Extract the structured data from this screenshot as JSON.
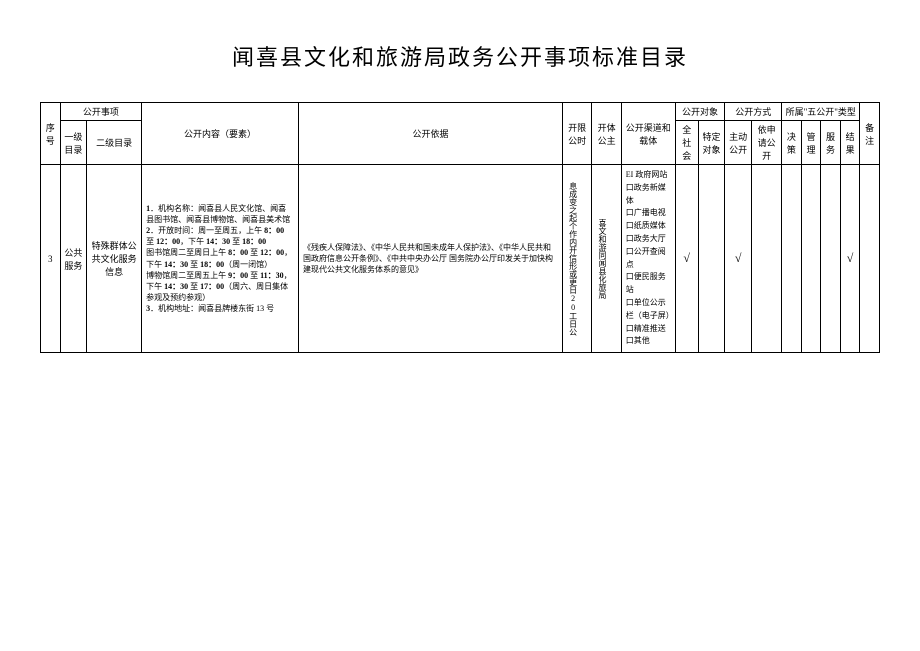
{
  "title": "闻喜县文化和旅游局政务公开事项标准目录",
  "headers": {
    "seq": "序号",
    "open_items": "公开事项",
    "level1": "一级目录",
    "level2": "二级目录",
    "content": "公开内容（要素）",
    "basis": "公开依据",
    "time_limit": "开限公时",
    "subject": "开体公主",
    "channel": "公开渠道和载体",
    "target": "公开对象",
    "all_society": "全社会",
    "specific": "特定对象",
    "method": "公开方式",
    "active": "主动公开",
    "on_request": "依申请公开",
    "five_open": "所属\"五公开\"类型",
    "decision": "决策",
    "manage": "管理",
    "service": "服务",
    "result": "结果",
    "remark": "备注"
  },
  "row": {
    "seq": "3",
    "level1": "公共服务",
    "level2": "特殊群体公共文化服务信息",
    "content_1_label": "1",
    "content_1_title": "．机构名称：",
    "content_1_text": "闻喜县人民文化馆、闻喜县图书馆、闻喜县博物馆、闻喜县美术馆",
    "content_2_label": "2",
    "content_2_title": "．开放时间：",
    "content_2_text_a": "周一至周五，上午 ",
    "content_2_time_a": "8：00",
    "content_2_text_b": " 至 ",
    "content_2_time_b": "12：00",
    "content_2_text_c": "，下午 ",
    "content_2_time_c": "14：30",
    "content_2_text_d": " 至 ",
    "content_2_time_d": "18：00",
    "content_lib_a": "图书馆周二至周日上午 ",
    "content_lib_time_a": "8：00",
    "content_lib_b": " 至 ",
    "content_lib_time_b": "12：00",
    "content_lib_c": "，下午 ",
    "content_lib_time_c": "14：30",
    "content_lib_d": " 至 ",
    "content_lib_time_d": "18：00",
    "content_lib_e": "（周一闭馆）",
    "content_mus_a": "博物馆周二至周五上午 ",
    "content_mus_time_a": "9：00",
    "content_mus_b": " 至 ",
    "content_mus_time_b": "11：30",
    "content_mus_c": "，下午 ",
    "content_mus_time_c": "14：30",
    "content_mus_d": " 至 ",
    "content_mus_time_d": "17：00",
    "content_mus_e": "（周六、周日集体参观及预约参观）",
    "content_3_label": "3",
    "content_3_title": "．机构地址：",
    "content_3_text": "闻喜县牌楼东街 13 号",
    "basis": "《残疾人保障法》、《中华人民共和国未成年人保护法》、《中华人民共和国政府信息公开条例》、《中共中央办公厅 国务院办公厅印发关于加快构建现代公共文化服务体系的意见》",
    "time_limit": "息成变之起个作内开信形或更日20工日公",
    "subject": "喜文和游同闻县化旅局",
    "channel_1": "EI 政府网站口政务新媒体",
    "channel_2": "口广播电视口纸质媒体",
    "channel_3": "口政务大厅口公开查阅点",
    "channel_4": "口便民服务站",
    "channel_5": "口单位公示栏（电子屏）",
    "channel_6": "口精准推送口其他",
    "all_society": "√",
    "specific": "",
    "active": "√",
    "on_request": "",
    "decision": "",
    "manage": "",
    "service": "",
    "result": "√",
    "remark": ""
  }
}
